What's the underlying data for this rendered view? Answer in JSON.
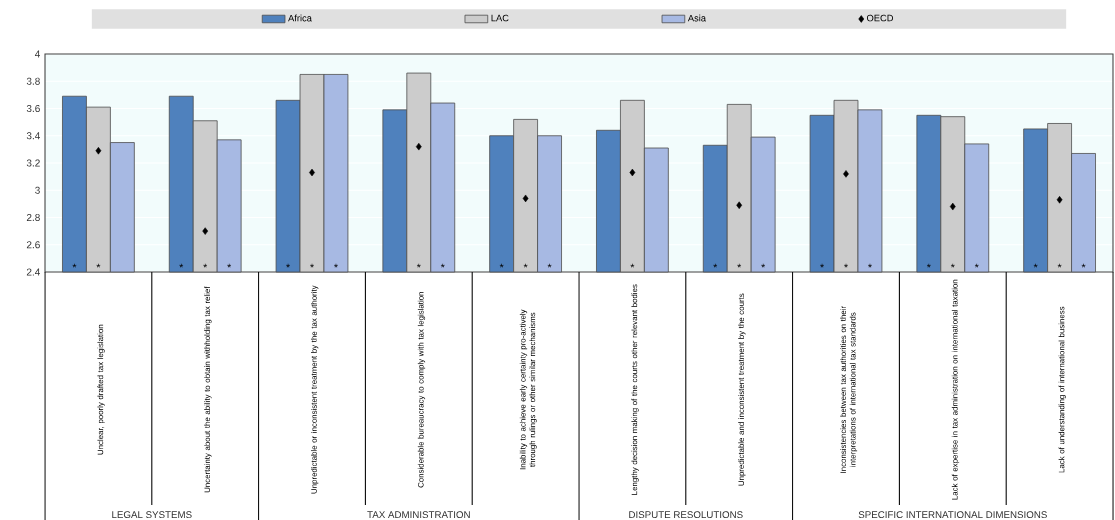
{
  "chart_data": {
    "type": "bar",
    "categories": [
      "Unclear, poorly drafted tax legislation",
      "Uncertainty about the ability to obtain withholding tax relief",
      "Unpredictable or inconsistent treatment by the tax authority",
      "Considerable bureaucracy to comply with tax legislation",
      "Inability to achieve early certainty pro-actively through rulings or other similar mechanisms",
      "Lengthy decision making of the courts other relevant bodies",
      "Unpredictable and inconsistent treatment by the courts",
      "Inconsistencies between tax authorities on their interpretations of international tax standards",
      "Lack of expertise in tax administration on international taxation",
      "Lack of understanding of international business"
    ],
    "series": [
      {
        "name": "Africa",
        "color": "#4f81bd",
        "values": [
          3.69,
          3.69,
          3.66,
          3.59,
          3.4,
          3.44,
          3.33,
          3.55,
          3.55,
          3.45
        ],
        "value_labels": [
          "*",
          "*",
          "*",
          null,
          "*",
          null,
          "*",
          "*",
          "*",
          "*"
        ]
      },
      {
        "name": "LAC",
        "color": "#cccccc",
        "values": [
          3.61,
          3.51,
          3.85,
          3.86,
          3.52,
          3.66,
          3.63,
          3.66,
          3.54,
          3.49
        ],
        "value_labels": [
          "*",
          "*",
          "*",
          "*",
          "*",
          "*",
          "*",
          "*",
          "*",
          "*"
        ]
      },
      {
        "name": "Asia",
        "color": "#a7b9e3",
        "values": [
          3.35,
          3.37,
          3.85,
          3.64,
          3.4,
          3.31,
          3.39,
          3.59,
          3.34,
          3.27
        ],
        "value_labels": [
          null,
          "*",
          "*",
          "*",
          "*",
          null,
          "*",
          "*",
          "*",
          "*"
        ]
      },
      {
        "name": "OECD",
        "type": "scatter",
        "marker": "diamond",
        "color": "#000000",
        "values": [
          3.29,
          2.7,
          3.13,
          3.32,
          2.94,
          3.13,
          2.89,
          3.12,
          2.88,
          2.93
        ]
      }
    ],
    "ylim": [
      2.4,
      4
    ],
    "yticks": [
      2.4,
      2.6,
      2.8,
      3,
      3.2,
      3.4,
      3.6,
      3.8,
      4
    ],
    "grid": "y",
    "legend": "top",
    "annotations": [
      "LEGAL SYSTEMS",
      "TAX ADMINISTRATION",
      "DISPUTE RESOLUTIONS",
      "SPECIFIC INTERNATIONAL DIMENSIONS"
    ]
  }
}
